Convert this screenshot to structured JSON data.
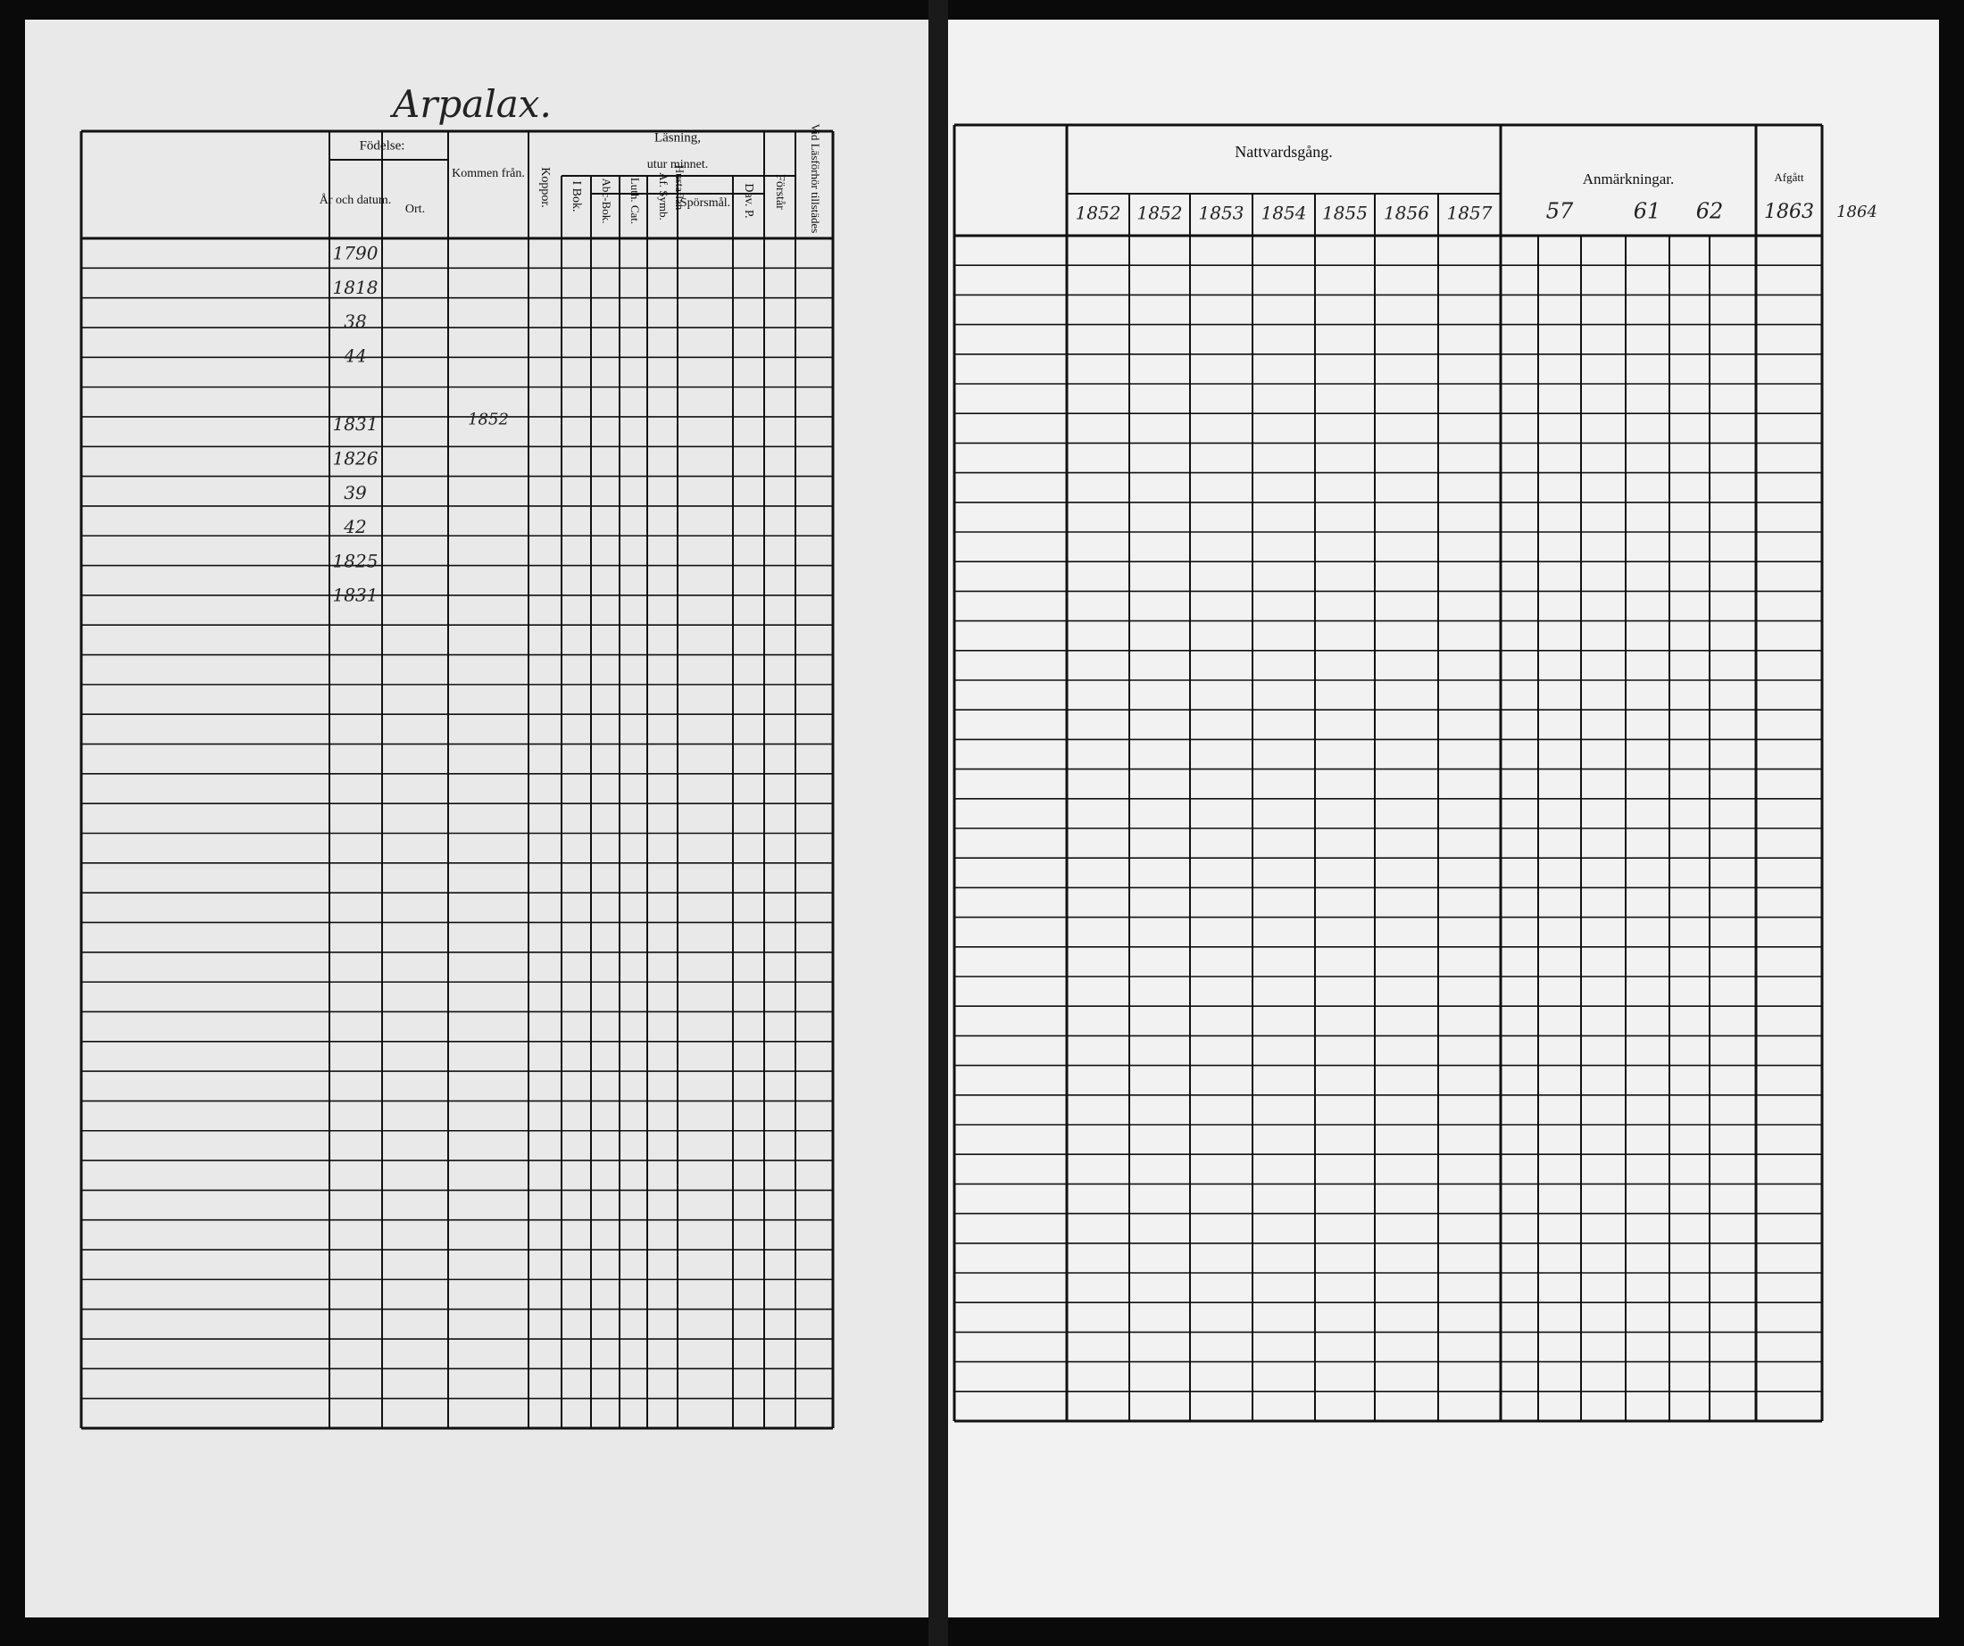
{
  "title": "Arpalax.",
  "left_page": {
    "birth_group": "Födelse:",
    "birth_date": "År och datum.",
    "birth_place": "Ort.",
    "came_from": "Kommen från.",
    "smallpox": "Koppor.",
    "reading": "Läsning,",
    "by_heart": "utur minnet.",
    "in_book": "I Bok.",
    "abc_book": "Abc-Bok.",
    "luth_cat": "Luth. Cat.",
    "af_symb": "Af. Symb.",
    "hustaflan": "Hustaflan",
    "questions": "Spörsmål.",
    "dav_p": "Dav. P.",
    "understands": "Förstår",
    "present": "Vid Läsförhör tillstädes",
    "birth_years": [
      "1790",
      "1818",
      "38",
      "44",
      "",
      "1831",
      "1826",
      "39",
      "42",
      "1825",
      "1831"
    ],
    "came_from_entry": "1852"
  },
  "right_page": {
    "communion": "Nattvardsgång.",
    "years": [
      "1852",
      "1852",
      "1853",
      "1854",
      "1855",
      "1856",
      "1857"
    ],
    "remarks": "Anmärkningar.",
    "remark_years": [
      "57",
      "61",
      "62"
    ],
    "departed": "Afgått",
    "departed_year": "1863",
    "margin_year": "1864"
  }
}
